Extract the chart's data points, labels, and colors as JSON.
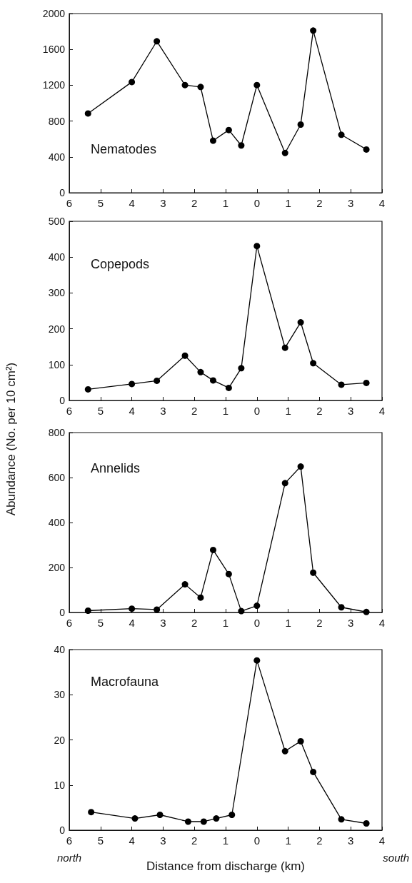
{
  "chart_data": [
    {
      "type": "line",
      "title": "Nematodes",
      "x": [
        -5.4,
        -4.0,
        -3.2,
        -2.3,
        -1.8,
        -1.4,
        -0.9,
        -0.5,
        0,
        0.9,
        1.4,
        1.8,
        2.7,
        3.5
      ],
      "series": [
        {
          "color": "#000000",
          "values": [
            885,
            1236,
            1691,
            1202,
            1181,
            581,
            700,
            528,
            1202,
            444,
            761,
            1810,
            647,
            483
          ]
        }
      ],
      "xlim": [
        -6,
        4
      ],
      "xticks": [
        {
          "value": -6,
          "label": "6"
        },
        {
          "value": -5,
          "label": "5"
        },
        {
          "value": -4,
          "label": "4"
        },
        {
          "value": -3,
          "label": "3"
        },
        {
          "value": -2,
          "label": "2"
        },
        {
          "value": -1,
          "label": "1"
        },
        0,
        1,
        2,
        3,
        4
      ],
      "ylim": [
        0,
        2000
      ],
      "yticks": [
        0,
        400,
        800,
        1200,
        1600,
        2000
      ],
      "marker": "circle",
      "line_style": "solid",
      "grid": false
    },
    {
      "type": "line",
      "title": "Copepods",
      "x": [
        -5.4,
        -4.0,
        -3.2,
        -2.3,
        -1.8,
        -1.4,
        -0.9,
        -0.5,
        0,
        0.9,
        1.4,
        1.8,
        2.7,
        3.5
      ],
      "series": [
        {
          "color": "#000000",
          "values": [
            31,
            46,
            55,
            125,
            79,
            56,
            35,
            90,
            431,
            147,
            218,
            104,
            44,
            49
          ]
        }
      ],
      "xlim": [
        -6,
        4
      ],
      "xticks": [
        {
          "value": -6,
          "label": "6"
        },
        {
          "value": -5,
          "label": "5"
        },
        {
          "value": -4,
          "label": "4"
        },
        {
          "value": -3,
          "label": "3"
        },
        {
          "value": -2,
          "label": "2"
        },
        {
          "value": -1,
          "label": "1"
        },
        0,
        1,
        2,
        3,
        4
      ],
      "ylim": [
        0,
        500
      ],
      "yticks": [
        0,
        100,
        200,
        300,
        400,
        500
      ],
      "marker": "circle",
      "line_style": "solid",
      "grid": false
    },
    {
      "type": "line",
      "title": "Annelids",
      "ylabel": "Abundance (No. per 10 cm²)",
      "x": [
        -5.4,
        -4.0,
        -3.2,
        -2.3,
        -1.8,
        -1.4,
        -0.9,
        -0.5,
        0,
        0.9,
        1.4,
        1.8,
        2.7,
        3.5
      ],
      "series": [
        {
          "color": "#000000",
          "values": [
            8,
            17,
            13,
            125,
            66,
            278,
            171,
            6,
            30,
            575,
            649,
            177,
            23,
            2
          ]
        }
      ],
      "xlim": [
        -6,
        4
      ],
      "xticks": [
        {
          "value": -6,
          "label": "6"
        },
        {
          "value": -5,
          "label": "5"
        },
        {
          "value": -4,
          "label": "4"
        },
        {
          "value": -3,
          "label": "3"
        },
        {
          "value": -2,
          "label": "2"
        },
        {
          "value": -1,
          "label": "1"
        },
        0,
        1,
        2,
        3,
        4
      ],
      "ylim": [
        0,
        800
      ],
      "yticks": [
        0,
        200,
        400,
        600,
        800
      ],
      "marker": "circle",
      "line_style": "solid",
      "grid": false
    },
    {
      "type": "line",
      "title": "Macrofauna",
      "xlabel": "Distance from discharge (km)",
      "annotations": [
        "north",
        "south"
      ],
      "x": [
        -5.3,
        -3.9,
        -3.1,
        -2.2,
        -1.7,
        -1.3,
        -0.8,
        0,
        0.9,
        1.4,
        1.8,
        2.7,
        3.5
      ],
      "series": [
        {
          "color": "#000000",
          "values": [
            4.0,
            2.6,
            3.4,
            1.9,
            1.9,
            2.6,
            3.4,
            37.6,
            17.5,
            19.7,
            12.9,
            2.4,
            1.5
          ]
        }
      ],
      "xlim": [
        -6,
        4
      ],
      "xticks": [
        {
          "value": -6,
          "label": "6"
        },
        {
          "value": -5,
          "label": "5"
        },
        {
          "value": -4,
          "label": "4"
        },
        {
          "value": -3,
          "label": "3"
        },
        {
          "value": -2,
          "label": "2"
        },
        {
          "value": -1,
          "label": "1"
        },
        0,
        1,
        2,
        3,
        4
      ],
      "ylim": [
        0,
        40
      ],
      "yticks": [
        0,
        10,
        20,
        30,
        40
      ],
      "marker": "circle",
      "line_style": "solid",
      "grid": false
    }
  ]
}
